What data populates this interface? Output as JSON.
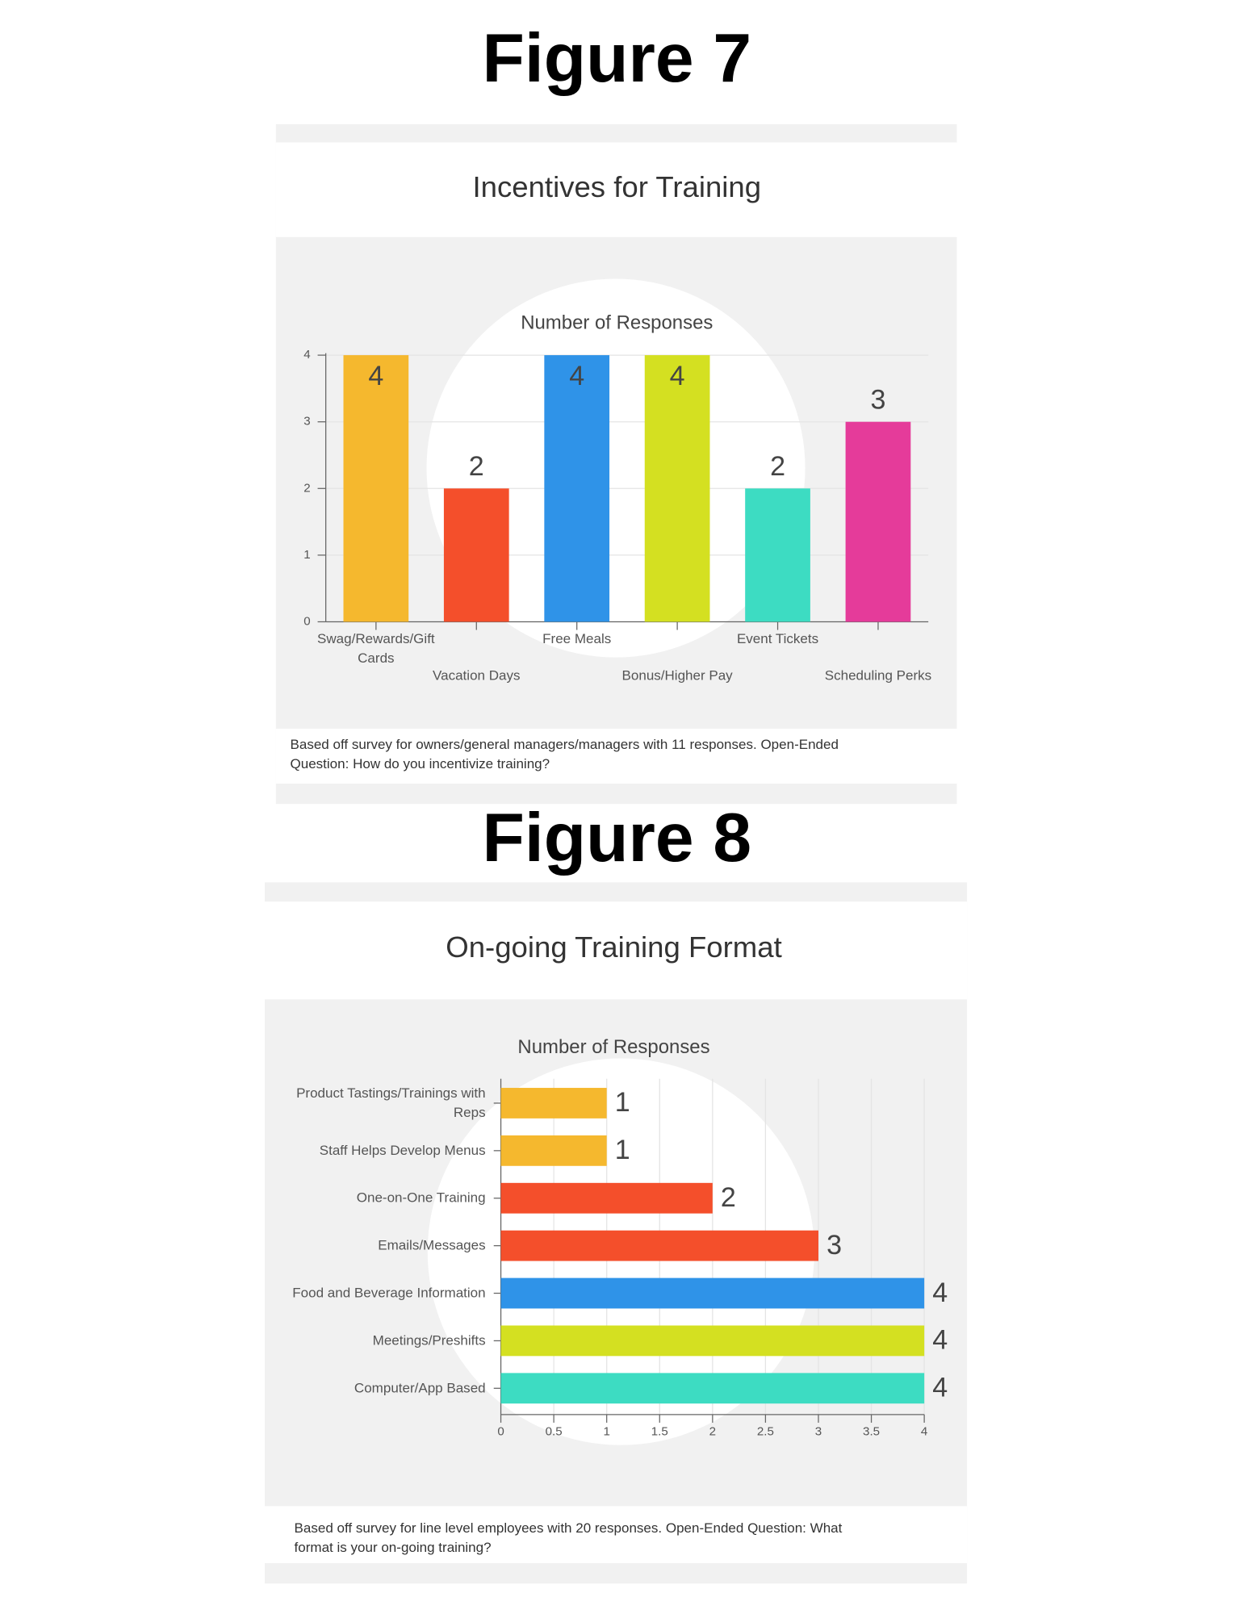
{
  "figures": [
    {
      "label": "Figure 7"
    },
    {
      "label": "Figure 8"
    }
  ],
  "chart_data": [
    {
      "type": "bar",
      "title": "Incentives for Training",
      "subtitle": "Number of Responses",
      "categories": [
        "Swag/Rewards/Gift Cards",
        "Vacation Days",
        "Free Meals",
        "Bonus/Higher Pay",
        "Event Tickets",
        "Scheduling Perks"
      ],
      "values": [
        4,
        2,
        4,
        4,
        2,
        3
      ],
      "colors": [
        "#f5b82e",
        "#f44f2b",
        "#2f93e8",
        "#d4e021",
        "#3ddcc2",
        "#e53b9a"
      ],
      "ylim": [
        0,
        4
      ],
      "yticks": [
        0,
        1,
        2,
        3,
        4
      ],
      "grid": true,
      "note": "Based off survey for owners/general managers/managers with 11 responses. Open-Ended Question: How do you incentivize training?"
    },
    {
      "type": "hbar",
      "title": "On-going Training Format",
      "subtitle": "Number of Responses",
      "categories": [
        "Product Tastings/Trainings with Reps",
        "Staff Helps Develop Menus",
        "One-on-One Training",
        "Emails/Messages",
        "Food and Beverage Information",
        "Meetings/Preshifts",
        "Computer/App Based"
      ],
      "values": [
        1,
        1,
        2,
        3,
        4,
        4,
        4
      ],
      "colors": [
        "#f5b82e",
        "#f5b82e",
        "#f44f2b",
        "#f44f2b",
        "#2f93e8",
        "#d4e021",
        "#3ddcc2"
      ],
      "xlim": [
        0,
        4
      ],
      "xticks": [
        0,
        0.5,
        1,
        1.5,
        2,
        2.5,
        3,
        3.5,
        4
      ],
      "grid": true,
      "note": "Based off survey for line level employees with 20 responses. Open-Ended Question: What format is your on-going training?"
    }
  ]
}
